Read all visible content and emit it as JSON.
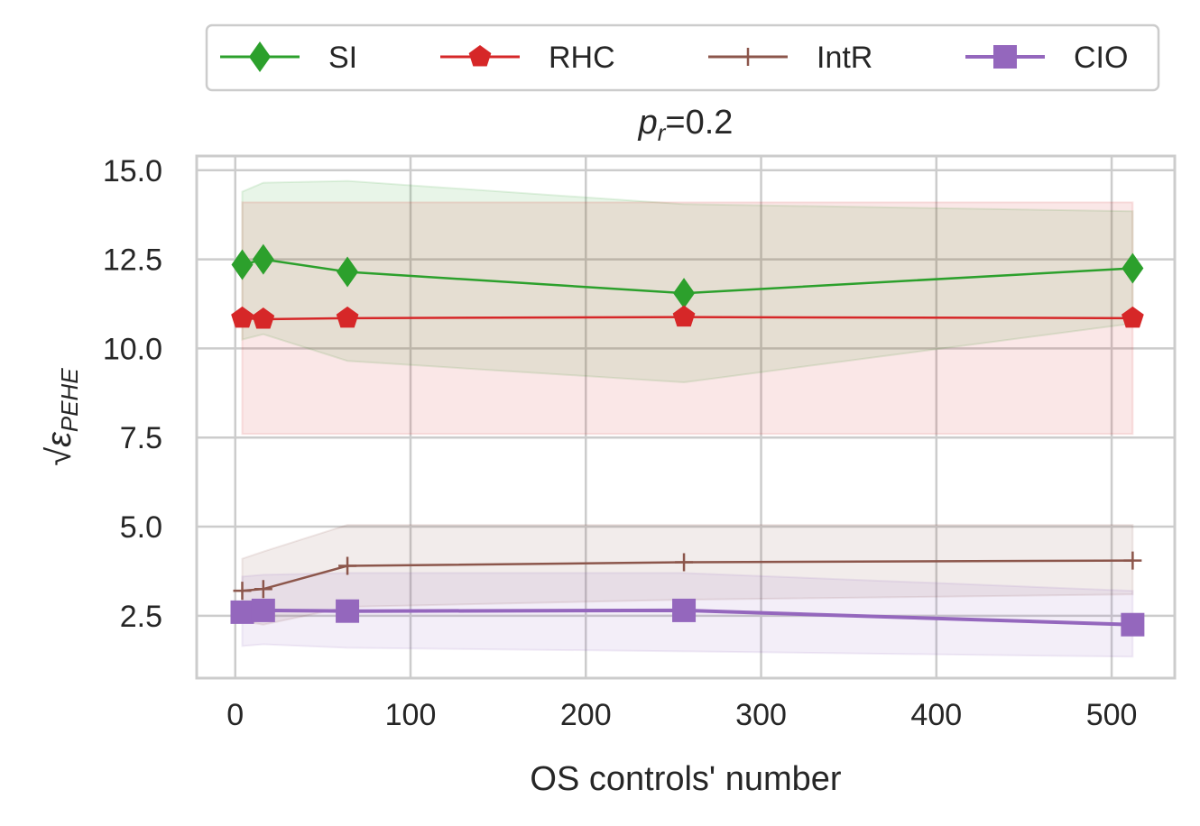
{
  "chart_data": {
    "type": "line",
    "title": {
      "base": "p",
      "subscript": "r",
      "suffix": "=0.2"
    },
    "xlabel": "OS controls' number",
    "ylabel": {
      "base": "ε",
      "subscript": "PEHE",
      "radical": "√"
    },
    "xlim": [
      -22,
      536
    ],
    "ylim": [
      0.75,
      15.4
    ],
    "xticks": [
      0,
      100,
      200,
      300,
      400,
      500
    ],
    "yticks": [
      2.5,
      5.0,
      7.5,
      10.0,
      12.5,
      15.0
    ],
    "ytick_labels": [
      "2.5",
      "5.0",
      "7.5",
      "10.0",
      "12.5",
      "15.0"
    ],
    "grid": true,
    "legend_position": "top, outside, 4 columns",
    "x": [
      4,
      16,
      64,
      256,
      512
    ],
    "series": [
      {
        "name": "SI",
        "color": "#2ca02c",
        "marker": "diamond",
        "values": [
          12.35,
          12.5,
          12.15,
          11.55,
          12.25
        ],
        "lower": [
          10.25,
          10.4,
          9.65,
          9.05,
          10.7
        ],
        "upper": [
          14.4,
          14.65,
          14.7,
          14.05,
          13.85
        ]
      },
      {
        "name": "RHC",
        "color": "#d62728",
        "marker": "pentagon",
        "values": [
          10.85,
          10.82,
          10.85,
          10.88,
          10.85
        ],
        "lower": [
          7.6,
          7.6,
          7.6,
          7.6,
          7.6
        ],
        "upper": [
          14.1,
          14.1,
          14.1,
          14.1,
          14.1
        ]
      },
      {
        "name": "IntR",
        "color": "#8c564b",
        "marker": "plus",
        "values": [
          3.2,
          3.25,
          3.9,
          4.0,
          4.05
        ],
        "lower": [
          2.35,
          2.25,
          2.75,
          2.95,
          3.1
        ],
        "upper": [
          4.1,
          4.3,
          5.05,
          5.05,
          5.05
        ]
      },
      {
        "name": "CIO",
        "color": "#9467bd",
        "marker": "square",
        "values": [
          2.6,
          2.65,
          2.63,
          2.65,
          2.25
        ],
        "lower": [
          1.65,
          1.7,
          1.6,
          1.5,
          1.35
        ],
        "upper": [
          3.6,
          3.65,
          3.7,
          3.7,
          3.2
        ]
      }
    ]
  }
}
